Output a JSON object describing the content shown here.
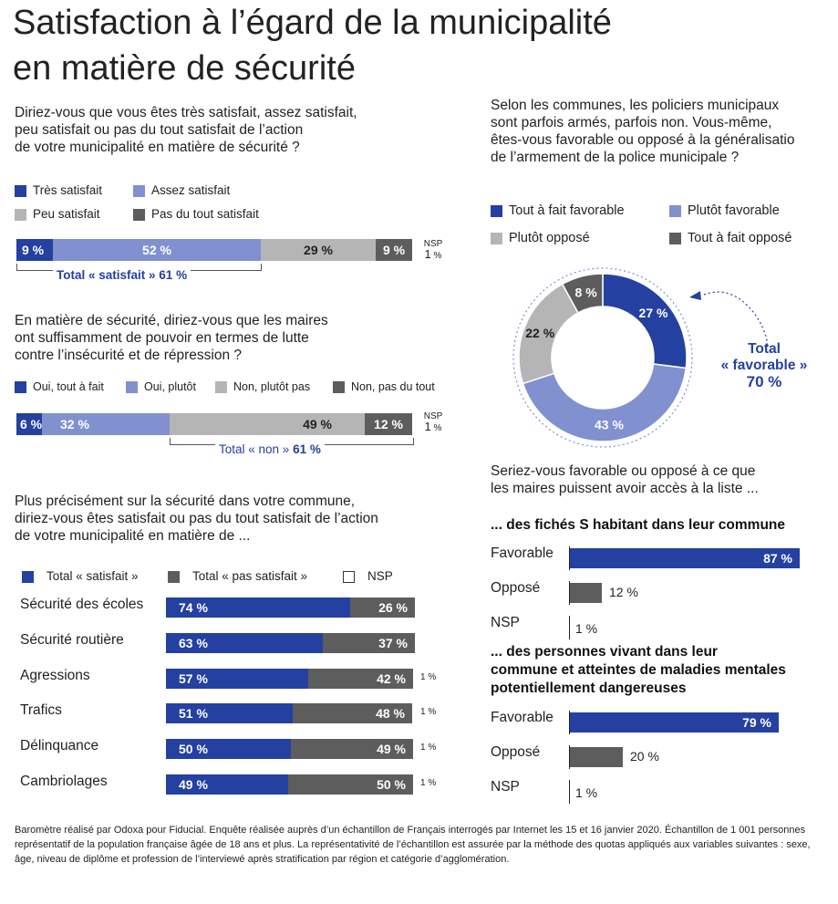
{
  "title_line1": "Satisfaction à l’égard de la municipalité",
  "title_line2": "en matière de sécurité",
  "colors": {
    "dark_blue": "#2440a0",
    "light_blue": "#8191cf",
    "light_gray": "#b5b5b5",
    "dark_gray": "#5d5d5d"
  },
  "q1": {
    "lines": [
      "Diriez-vous que vous êtes très satisfait, assez satisfait,",
      "peu satisfait ou pas du tout satisfait de l’action",
      "de votre municipalité en matière de sécurité ?"
    ],
    "legend": [
      "Très satisfait",
      "Assez satisfait",
      "Peu satisfait",
      "Pas du tout satisfait"
    ],
    "labels": [
      "9 %",
      "52 %",
      "29 %",
      "9 %"
    ],
    "nsp_label": "NSP",
    "nsp_value": "1",
    "nsp_unit": "%",
    "total_text": "Total « satisfait » ",
    "total_value": "61 %"
  },
  "q2": {
    "lines": [
      "En matière de sécurité, diriez-vous que les maires",
      "ont suffisamment de pouvoir en termes de lutte",
      "contre l’insécurité et de répression ?"
    ],
    "legend": [
      "Oui, tout à fait",
      "Oui, plutôt",
      "Non, plutôt pas",
      "Non, pas du tout"
    ],
    "labels": [
      "6 %",
      "32 %",
      "49 %",
      "12 %"
    ],
    "nsp_label": "NSP",
    "nsp_value": "1",
    "nsp_unit": "%",
    "total_text": "Total « non » ",
    "total_value": "61 %"
  },
  "q3": {
    "lines": [
      "Plus précisément sur la sécurité dans votre commune,",
      "diriez-vous êtes satisfait ou pas du tout satisfait de l’action",
      "de votre municipalité en matière de ..."
    ],
    "legend": [
      "Total « satisfait »",
      "Total « pas satisfait »",
      "NSP"
    ],
    "rows": [
      {
        "label": "Sécurité des écoles",
        "sat_label": "74 %",
        "unsat_label": "26 %",
        "nsp": ""
      },
      {
        "label": "Sécurité routière",
        "sat_label": "63 %",
        "unsat_label": "37 %",
        "nsp": ""
      },
      {
        "label": "Agressions",
        "sat_label": "57 %",
        "unsat_label": "42 %",
        "nsp": "1 %"
      },
      {
        "label": "Trafics",
        "sat_label": "51 %",
        "unsat_label": "48 %",
        "nsp": "1 %"
      },
      {
        "label": "Délinquance",
        "sat_label": "50 %",
        "unsat_label": "49 %",
        "nsp": "1 %"
      },
      {
        "label": "Cambriolages",
        "sat_label": "49 %",
        "unsat_label": "50 %",
        "nsp": "1 %"
      }
    ]
  },
  "q4": {
    "lines": [
      "Selon les communes, les policiers municipaux",
      "sont parfois armés, parfois non. Vous-même,",
      "êtes-vous favorable ou opposé à la généralisatio",
      "de l’armement de la police municipale ?"
    ],
    "legend": [
      "Tout à fait favorable",
      "Plutôt favorable",
      "Plutôt opposé",
      "Tout à fait opposé"
    ],
    "labels": [
      "27 %",
      "43 %",
      "22 %",
      "8 %"
    ],
    "total_line1": "Total",
    "total_line2": "« favorable »",
    "total_value": "70 %"
  },
  "q5": {
    "lines": [
      "Seriez-vous favorable ou opposé à ce que",
      "les maires puissent avoir accès à la liste ..."
    ],
    "sub1": "... des fichés S habitant dans leur commune",
    "sub2_lines": [
      "... des personnes vivant dans leur",
      "commune et atteintes de maladies mentales",
      "potentiellement dangereuses"
    ],
    "cat_labels": [
      "Favorable",
      "Opposé",
      "NSP"
    ],
    "set1_labels": [
      "87 %",
      "12 %",
      "1 %"
    ],
    "set2_labels": [
      "79 %",
      "20 %",
      "1 %"
    ]
  },
  "footnote": "Baromètre réalisé par Odoxa pour Fiducial. Enquête réalisée auprès d’un échantillon de Français interrogés par Internet les 15 et 16 janvier 2020. Échantillon de 1 001 personnes représentatif de la population française âgée de 18 ans et plus. La représentativité de l’échantillon est assurée par la méthode des quotas appliqués aux variables suivantes : sexe, âge, niveau de diplôme et profession de l’interviewé après stratification par région et catégorie d’agglomération.",
  "chart_data": [
    {
      "type": "bar",
      "title": "",
      "series": [
        {
          "name": "Très satisfait",
          "values": [
            9
          ]
        },
        {
          "name": "Assez satisfait",
          "values": [
            52
          ]
        },
        {
          "name": "Peu satisfait",
          "values": [
            29
          ]
        },
        {
          "name": "Pas du tout satisfait",
          "values": [
            9
          ]
        },
        {
          "name": "NSP",
          "values": [
            1
          ]
        }
      ]
    },
    {
      "type": "bar",
      "series": [
        {
          "name": "Oui, tout à fait",
          "values": [
            6
          ]
        },
        {
          "name": "Oui, plutôt",
          "values": [
            32
          ]
        },
        {
          "name": "Non, plutôt pas",
          "values": [
            49
          ]
        },
        {
          "name": "Non, pas du tout",
          "values": [
            12
          ]
        },
        {
          "name": "NSP",
          "values": [
            1
          ]
        }
      ]
    },
    {
      "type": "bar",
      "categories": [
        "Sécurité des écoles",
        "Sécurité routière",
        "Agressions",
        "Trafics",
        "Délinquance",
        "Cambriolages"
      ],
      "series": [
        {
          "name": "Total « satisfait »",
          "values": [
            74,
            63,
            57,
            51,
            50,
            49
          ]
        },
        {
          "name": "Total « pas satisfait »",
          "values": [
            26,
            37,
            42,
            48,
            49,
            50
          ]
        },
        {
          "name": "NSP",
          "values": [
            0,
            0,
            1,
            1,
            1,
            1
          ]
        }
      ]
    },
    {
      "type": "pie",
      "categories": [
        "Tout à fait favorable",
        "Plutôt favorable",
        "Plutôt opposé",
        "Tout à fait opposé"
      ],
      "values": [
        27,
        43,
        22,
        8
      ]
    },
    {
      "type": "bar",
      "categories": [
        "Favorable",
        "Opposé",
        "NSP"
      ],
      "values": [
        87,
        12,
        1
      ]
    },
    {
      "type": "bar",
      "categories": [
        "Favorable",
        "Opposé",
        "NSP"
      ],
      "values": [
        79,
        20,
        1
      ]
    }
  ]
}
